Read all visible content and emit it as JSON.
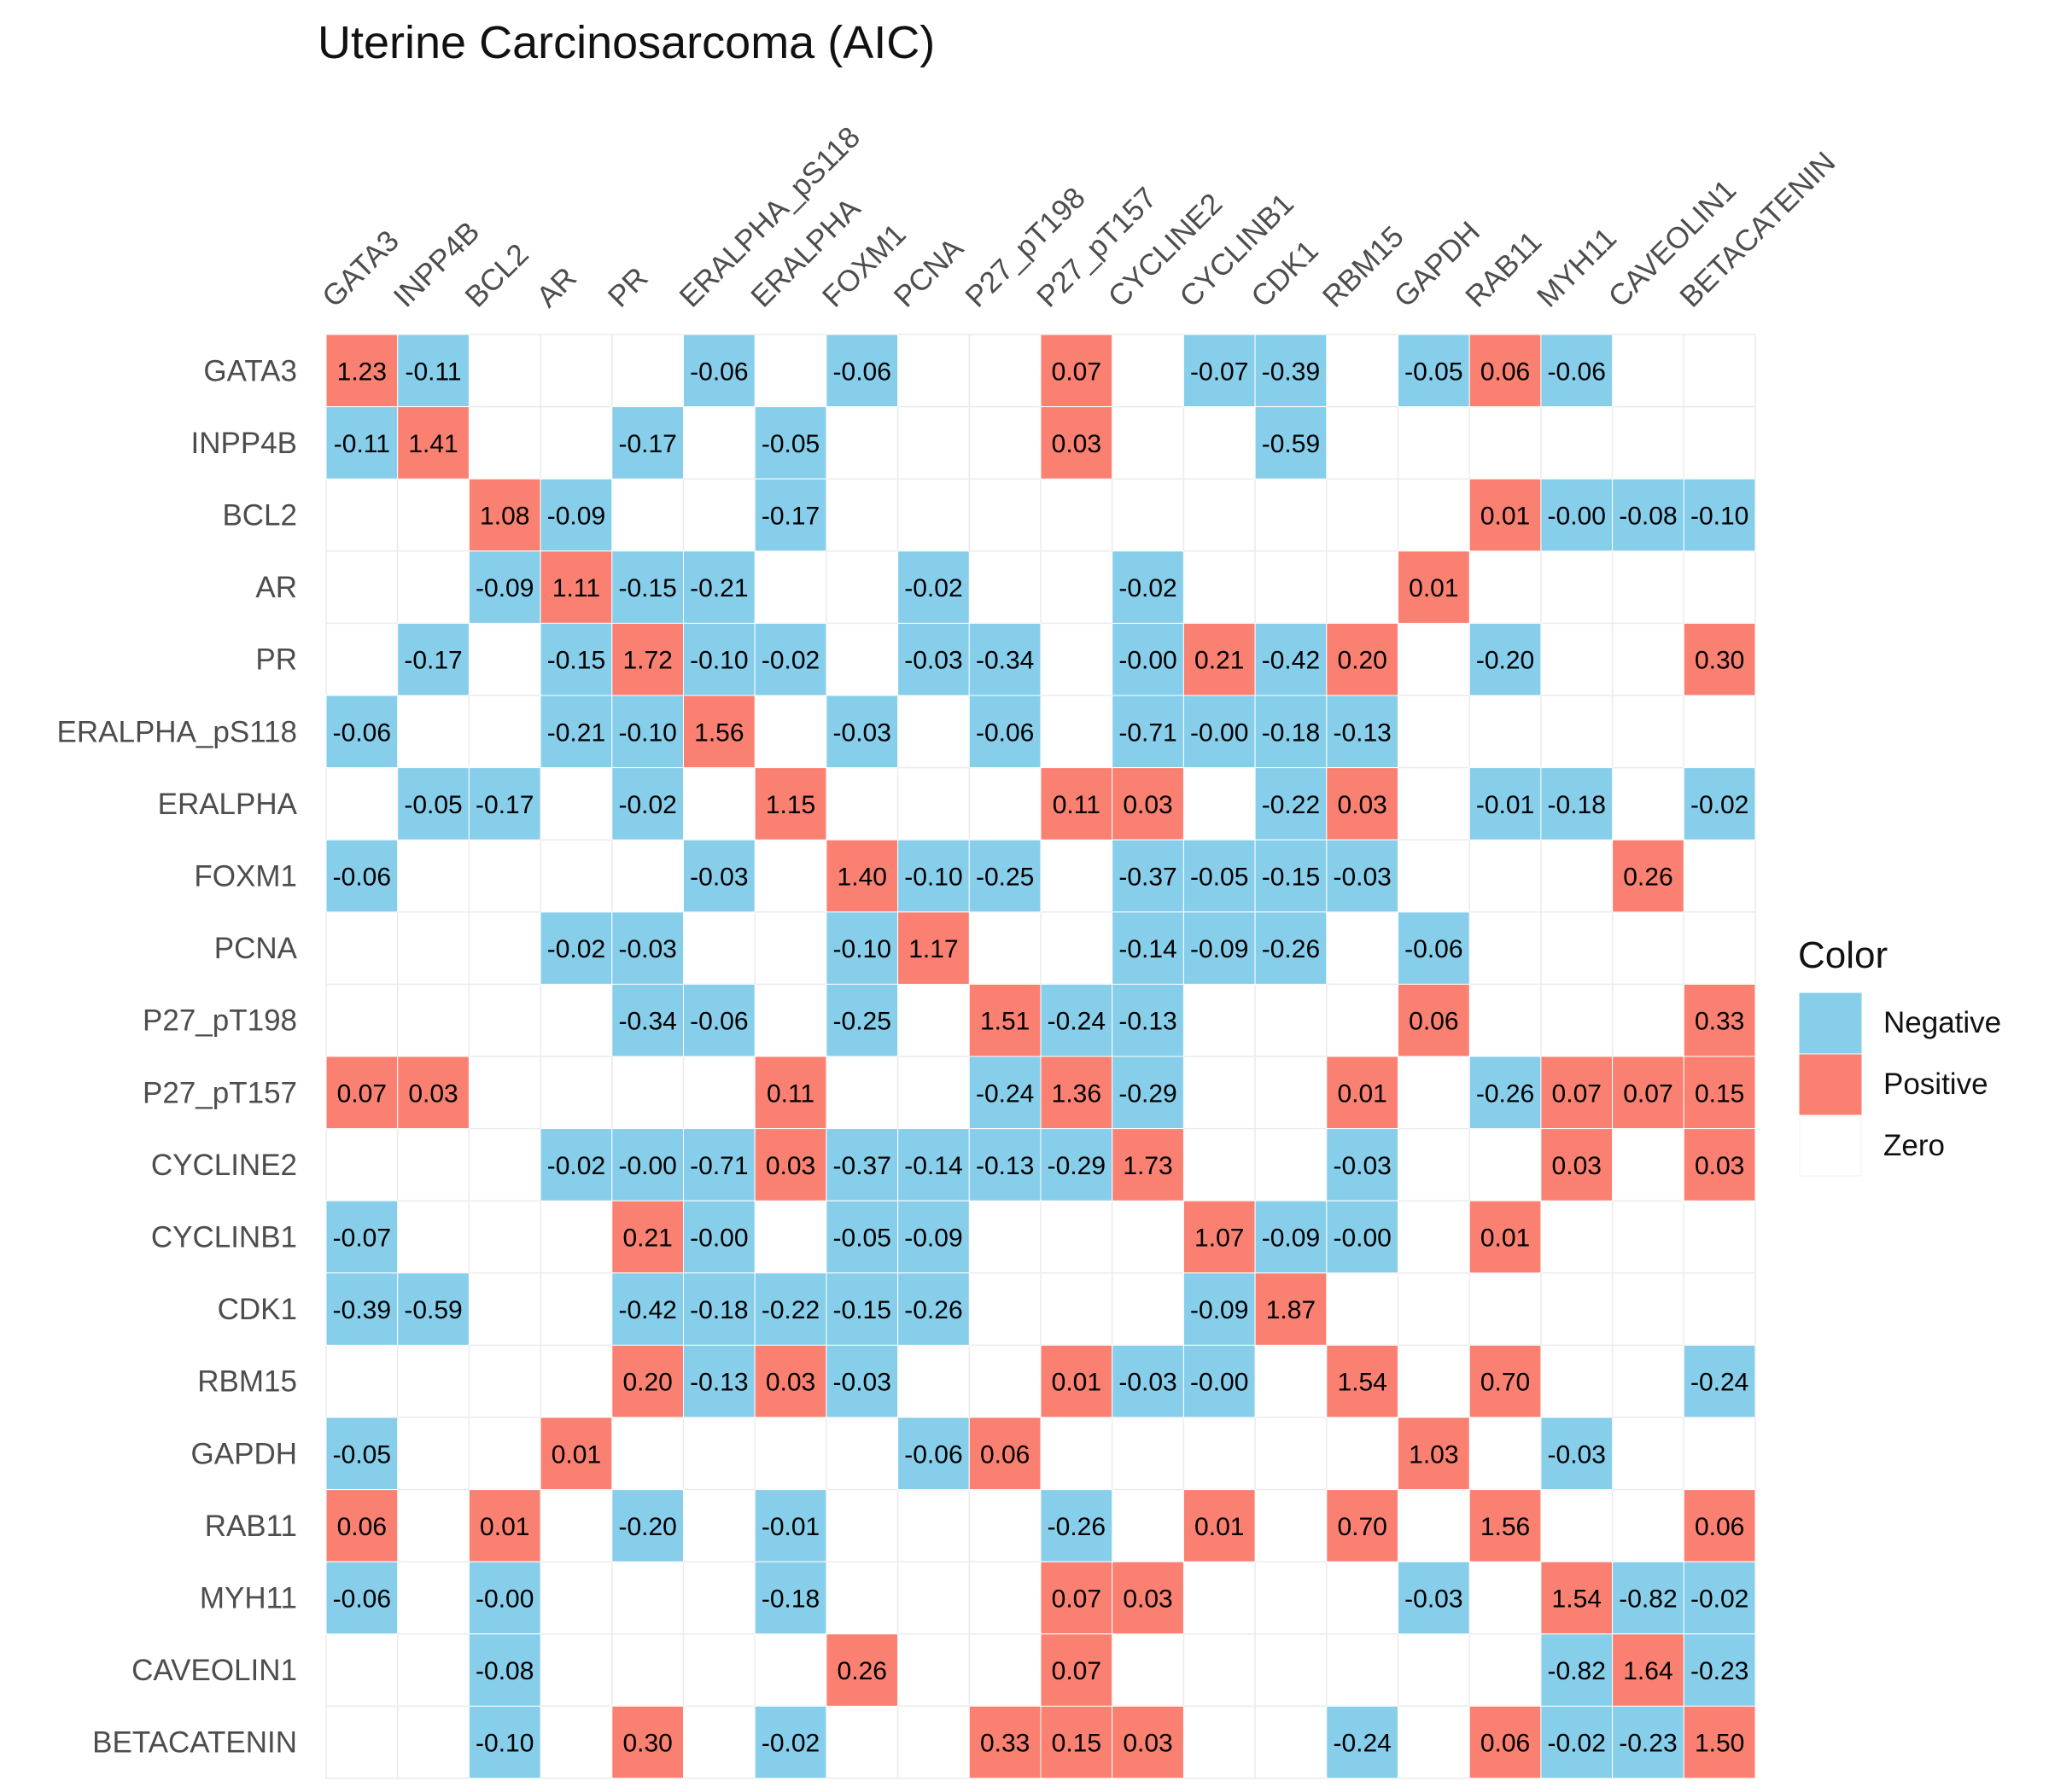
{
  "chart_data": {
    "type": "heatmap",
    "title": "Uterine Carcinosarcoma (AIC)",
    "rows": [
      "GATA3",
      "INPP4B",
      "BCL2",
      "AR",
      "PR",
      "ERALPHA_pS118",
      "ERALPHA",
      "FOXM1",
      "PCNA",
      "P27_pT198",
      "P27_pT157",
      "CYCLINE2",
      "CYCLINB1",
      "CDK1",
      "RBM15",
      "GAPDH",
      "RAB11",
      "MYH11",
      "CAVEOLIN1",
      "BETACATENIN"
    ],
    "columns": [
      "GATA3",
      "INPP4B",
      "BCL2",
      "AR",
      "PR",
      "ERALPHA_pS118",
      "ERALPHA",
      "FOXM1",
      "PCNA",
      "P27_pT198",
      "P27_pT157",
      "CYCLINE2",
      "CYCLINB1",
      "CDK1",
      "RBM15",
      "GAPDH",
      "RAB11",
      "MYH11",
      "CAVEOLIN1",
      "BETACATENIN"
    ],
    "values": [
      [
        "1.23",
        "-0.11",
        "",
        "",
        "",
        "-0.06",
        "",
        "-0.06",
        "",
        "",
        "0.07",
        "",
        "-0.07",
        "-0.39",
        "",
        "-0.05",
        "0.06",
        "-0.06",
        "",
        ""
      ],
      [
        "-0.11",
        "1.41",
        "",
        "",
        "-0.17",
        "",
        "-0.05",
        "",
        "",
        "",
        "0.03",
        "",
        "",
        "-0.59",
        "",
        "",
        "",
        "",
        "",
        ""
      ],
      [
        "",
        "",
        "1.08",
        "-0.09",
        "",
        "",
        "-0.17",
        "",
        "",
        "",
        "",
        "",
        "",
        "",
        "",
        "",
        "0.01",
        "-0.00",
        "-0.08",
        "-0.10"
      ],
      [
        "",
        "",
        "-0.09",
        "1.11",
        "-0.15",
        "-0.21",
        "",
        "",
        "-0.02",
        "",
        "",
        "-0.02",
        "",
        "",
        "",
        "0.01",
        "",
        "",
        "",
        ""
      ],
      [
        "",
        "-0.17",
        "",
        "-0.15",
        "1.72",
        "-0.10",
        "-0.02",
        "",
        "-0.03",
        "-0.34",
        "",
        "-0.00",
        "0.21",
        "-0.42",
        "0.20",
        "",
        "-0.20",
        "",
        "",
        "0.30"
      ],
      [
        "-0.06",
        "",
        "",
        "-0.21",
        "-0.10",
        "1.56",
        "",
        "-0.03",
        "",
        "-0.06",
        "",
        "-0.71",
        "-0.00",
        "-0.18",
        "-0.13",
        "",
        "",
        "",
        "",
        ""
      ],
      [
        "",
        "-0.05",
        "-0.17",
        "",
        "-0.02",
        "",
        "1.15",
        "",
        "",
        "",
        "0.11",
        "0.03",
        "",
        "-0.22",
        "0.03",
        "",
        "-0.01",
        "-0.18",
        "",
        "-0.02"
      ],
      [
        "-0.06",
        "",
        "",
        "",
        "",
        "-0.03",
        "",
        "1.40",
        "-0.10",
        "-0.25",
        "",
        "-0.37",
        "-0.05",
        "-0.15",
        "-0.03",
        "",
        "",
        "",
        "0.26",
        ""
      ],
      [
        "",
        "",
        "",
        "-0.02",
        "-0.03",
        "",
        "",
        "-0.10",
        "1.17",
        "",
        "",
        "-0.14",
        "-0.09",
        "-0.26",
        "",
        "-0.06",
        "",
        "",
        "",
        ""
      ],
      [
        "",
        "",
        "",
        "",
        "-0.34",
        "-0.06",
        "",
        "-0.25",
        "",
        "1.51",
        "-0.24",
        "-0.13",
        "",
        "",
        "",
        "0.06",
        "",
        "",
        "",
        "0.33"
      ],
      [
        "0.07",
        "0.03",
        "",
        "",
        "",
        "",
        "0.11",
        "",
        "",
        "-0.24",
        "1.36",
        "-0.29",
        "",
        "",
        "0.01",
        "",
        "-0.26",
        "0.07",
        "0.07",
        "0.15"
      ],
      [
        "",
        "",
        "",
        "-0.02",
        "-0.00",
        "-0.71",
        "0.03",
        "-0.37",
        "-0.14",
        "-0.13",
        "-0.29",
        "1.73",
        "",
        "",
        "-0.03",
        "",
        "",
        "0.03",
        "",
        "0.03"
      ],
      [
        "-0.07",
        "",
        "",
        "",
        "0.21",
        "-0.00",
        "",
        "-0.05",
        "-0.09",
        "",
        "",
        "",
        "1.07",
        "-0.09",
        "-0.00",
        "",
        "0.01",
        "",
        "",
        ""
      ],
      [
        "-0.39",
        "-0.59",
        "",
        "",
        "-0.42",
        "-0.18",
        "-0.22",
        "-0.15",
        "-0.26",
        "",
        "",
        "",
        "-0.09",
        "1.87",
        "",
        "",
        "",
        "",
        "",
        ""
      ],
      [
        "",
        "",
        "",
        "",
        "0.20",
        "-0.13",
        "0.03",
        "-0.03",
        "",
        "",
        "0.01",
        "-0.03",
        "-0.00",
        "",
        "1.54",
        "",
        "0.70",
        "",
        "",
        "-0.24"
      ],
      [
        "-0.05",
        "",
        "",
        "0.01",
        "",
        "",
        "",
        "",
        "-0.06",
        "0.06",
        "",
        "",
        "",
        "",
        "",
        "1.03",
        "",
        "-0.03",
        "",
        ""
      ],
      [
        "0.06",
        "",
        "0.01",
        "",
        "-0.20",
        "",
        "-0.01",
        "",
        "",
        "",
        "-0.26",
        "",
        "0.01",
        "",
        "0.70",
        "",
        "1.56",
        "",
        "",
        "0.06"
      ],
      [
        "-0.06",
        "",
        "-0.00",
        "",
        "",
        "",
        "-0.18",
        "",
        "",
        "",
        "0.07",
        "0.03",
        "",
        "",
        "",
        "-0.03",
        "",
        "1.54",
        "-0.82",
        "-0.02"
      ],
      [
        "",
        "",
        "-0.08",
        "",
        "",
        "",
        "",
        "0.26",
        "",
        "",
        "0.07",
        "",
        "",
        "",
        "",
        "",
        "",
        "-0.82",
        "1.64",
        "-0.23"
      ],
      [
        "",
        "",
        "-0.10",
        "",
        "0.30",
        "",
        "-0.02",
        "",
        "",
        "0.33",
        "0.15",
        "0.03",
        "",
        "",
        "-0.24",
        "",
        "0.06",
        "-0.02",
        "-0.23",
        "1.50"
      ]
    ],
    "legend": {
      "title": "Color",
      "placement": "right",
      "entries": [
        {
          "label": "Negative",
          "color": "#87CEEB"
        },
        {
          "label": "Positive",
          "color": "#FA8072"
        },
        {
          "label": "Zero",
          "color": "#FFFFFF"
        }
      ]
    }
  },
  "colors": {
    "negative": "#87CEEB",
    "positive": "#FA8072",
    "zero": "#FFFFFF",
    "grid": "#EBEBEB"
  }
}
